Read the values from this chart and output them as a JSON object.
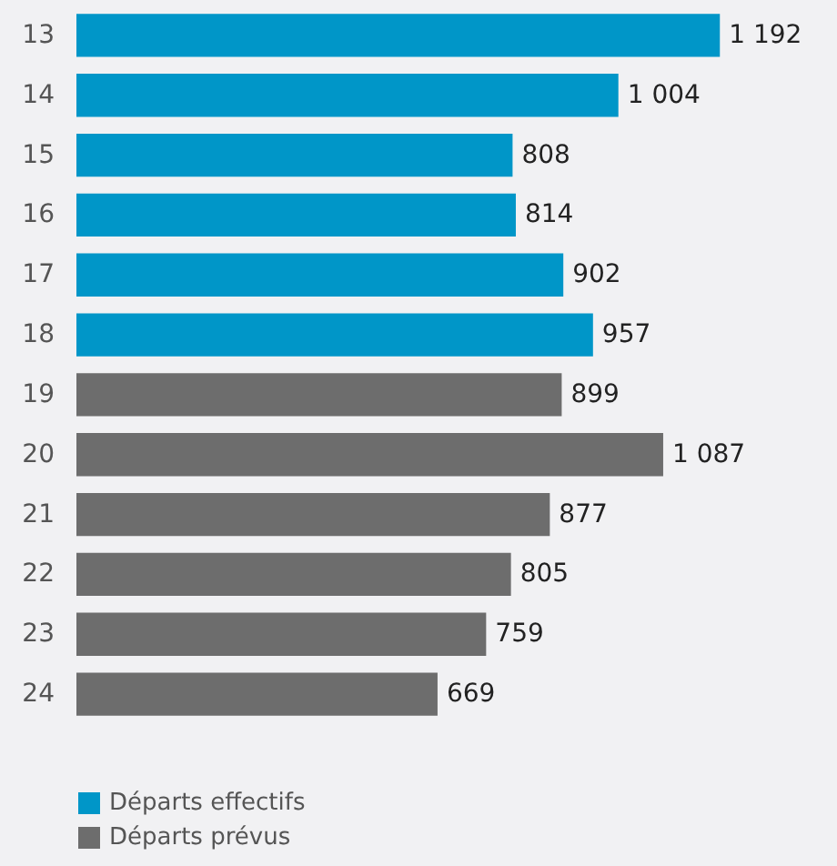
{
  "chart_data": {
    "type": "bar",
    "orientation": "horizontal",
    "stacked": true,
    "categories": [
      "13",
      "14",
      "15",
      "16",
      "17",
      "18",
      "19",
      "20",
      "21",
      "22",
      "23",
      "24"
    ],
    "series": [
      {
        "name": "Départs effectifs",
        "color": "#0096c8",
        "values": [
          1192,
          1004,
          808,
          814,
          902,
          957,
          null,
          null,
          null,
          null,
          null,
          null
        ],
        "value_labels": [
          "1 192",
          "1 004",
          "808",
          "814",
          "902",
          "957",
          null,
          null,
          null,
          null,
          null,
          null
        ]
      },
      {
        "name": "Départs prévus",
        "color": "#6d6d6d",
        "values": [
          null,
          null,
          null,
          null,
          null,
          null,
          899,
          1087,
          877,
          805,
          759,
          669
        ],
        "value_labels": [
          null,
          null,
          null,
          null,
          null,
          null,
          "899",
          "1 087",
          "877",
          "805",
          "759",
          "669"
        ]
      }
    ],
    "legend": "bottom left",
    "grid": false,
    "tick_labels": "y"
  }
}
